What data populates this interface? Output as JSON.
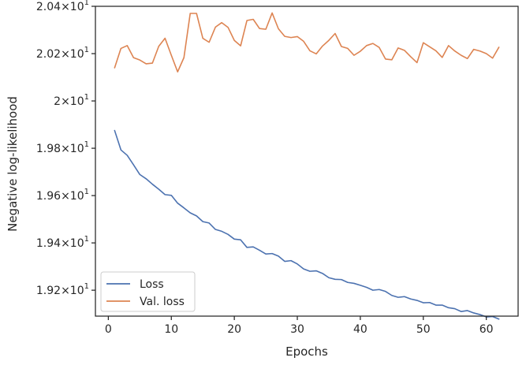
{
  "chart_data": {
    "type": "line",
    "xlabel": "Epochs",
    "ylabel": "Negative log-likelihood",
    "xlim": [
      -2.05,
      65.05
    ],
    "ylim": [
      19.0905,
      20.4
    ],
    "xticks": [
      0,
      10,
      20,
      30,
      40,
      50,
      60
    ],
    "yticks": [
      {
        "value": 19.2,
        "mantissa": "1.92",
        "base": "10",
        "exp": "1"
      },
      {
        "value": 19.4,
        "mantissa": "1.94",
        "base": "10",
        "exp": "1"
      },
      {
        "value": 19.6,
        "mantissa": "1.96",
        "base": "10",
        "exp": "1"
      },
      {
        "value": 19.8,
        "mantissa": "1.98",
        "base": "10",
        "exp": "1"
      },
      {
        "value": 20.0,
        "mantissa": "2",
        "base": "10",
        "exp": "1"
      },
      {
        "value": 20.2,
        "mantissa": "2.02",
        "base": "10",
        "exp": "1"
      },
      {
        "value": 20.4,
        "mantissa": "2.04",
        "base": "10",
        "exp": "1"
      }
    ],
    "grid": false,
    "legend_position": "lower-left",
    "x": [
      1,
      2,
      3,
      4,
      5,
      6,
      7,
      8,
      9,
      10,
      11,
      12,
      13,
      14,
      15,
      16,
      17,
      18,
      19,
      20,
      21,
      22,
      23,
      24,
      25,
      26,
      27,
      28,
      29,
      30,
      31,
      32,
      33,
      34,
      35,
      36,
      37,
      38,
      39,
      40,
      41,
      42,
      43,
      44,
      45,
      46,
      47,
      48,
      49,
      50,
      51,
      52,
      53,
      54,
      55,
      56,
      57,
      58,
      59,
      60,
      61,
      62
    ],
    "series": [
      {
        "name": "Loss",
        "color": "#4c72b0",
        "values": [
          19.875,
          19.793,
          19.77,
          19.73,
          19.689,
          19.671,
          19.648,
          19.627,
          19.604,
          19.601,
          19.568,
          19.548,
          19.527,
          19.514,
          19.49,
          19.484,
          19.457,
          19.449,
          19.436,
          19.416,
          19.413,
          19.381,
          19.383,
          19.369,
          19.353,
          19.355,
          19.344,
          19.322,
          19.325,
          19.311,
          19.29,
          19.28,
          19.282,
          19.271,
          19.253,
          19.246,
          19.245,
          19.233,
          19.229,
          19.221,
          19.212,
          19.2,
          19.203,
          19.195,
          19.178,
          19.17,
          19.173,
          19.163,
          19.157,
          19.147,
          19.148,
          19.137,
          19.137,
          19.126,
          19.122,
          19.11,
          19.114,
          19.104,
          19.097,
          19.087,
          19.089,
          19.078
        ]
      },
      {
        "name": "Val. loss",
        "color": "#dd8452",
        "values": [
          20.14,
          20.222,
          20.234,
          20.183,
          20.173,
          20.157,
          20.16,
          20.231,
          20.265,
          20.193,
          20.123,
          20.183,
          20.37,
          20.37,
          20.265,
          20.248,
          20.312,
          20.331,
          20.311,
          20.256,
          20.233,
          20.34,
          20.345,
          20.306,
          20.303,
          20.372,
          20.305,
          20.273,
          20.268,
          20.272,
          20.252,
          20.212,
          20.199,
          20.232,
          20.256,
          20.285,
          20.23,
          20.222,
          20.193,
          20.21,
          20.234,
          20.243,
          20.226,
          20.177,
          20.174,
          20.224,
          20.214,
          20.187,
          20.162,
          20.246,
          20.229,
          20.212,
          20.184,
          20.234,
          20.211,
          20.193,
          20.179,
          20.218,
          20.211,
          20.2,
          20.181,
          20.227
        ]
      }
    ]
  }
}
